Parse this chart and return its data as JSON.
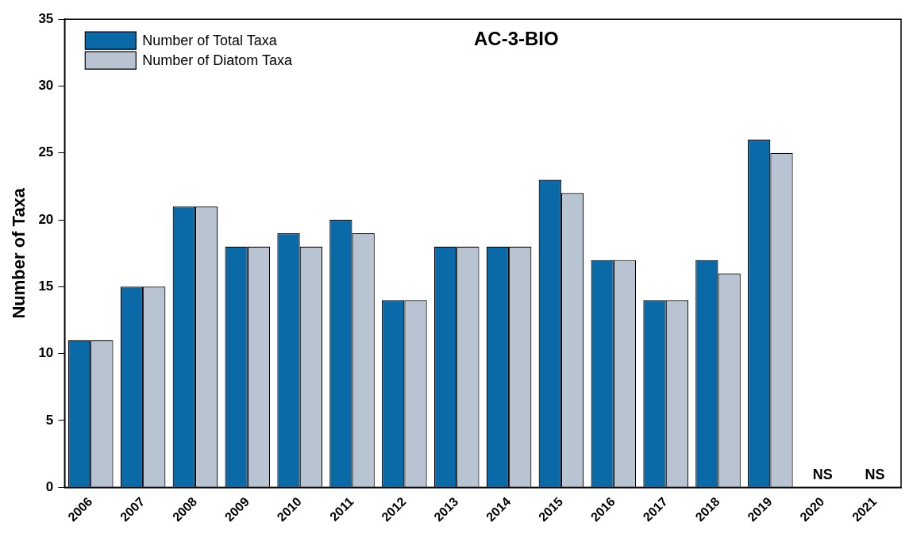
{
  "chart_data": {
    "type": "bar",
    "title": "AC-3-BIO",
    "ylabel": "Number of Taxa",
    "categories": [
      "2006",
      "2007",
      "2008",
      "2009",
      "2010",
      "2011",
      "2012",
      "2013",
      "2014",
      "2015",
      "2016",
      "2017",
      "2018",
      "2019",
      "2020",
      "2021"
    ],
    "series": [
      {
        "name": "Number of Total Taxa",
        "color": "#0a6aa8",
        "values": [
          11,
          15,
          21,
          18,
          19,
          20,
          14,
          18,
          18,
          23,
          17,
          14,
          17,
          26,
          null,
          null
        ]
      },
      {
        "name": "Number of Diatom Taxa",
        "color": "#b8c4d2",
        "values": [
          11,
          15,
          21,
          18,
          18,
          19,
          14,
          18,
          18,
          22,
          17,
          14,
          16,
          25,
          null,
          null
        ]
      }
    ],
    "ylim": [
      0,
      35
    ],
    "yticks": [
      0,
      5,
      10,
      15,
      20,
      25,
      30,
      35
    ],
    "grid": false,
    "legend": "top left",
    "annotations": [
      "NS",
      "NS"
    ]
  }
}
